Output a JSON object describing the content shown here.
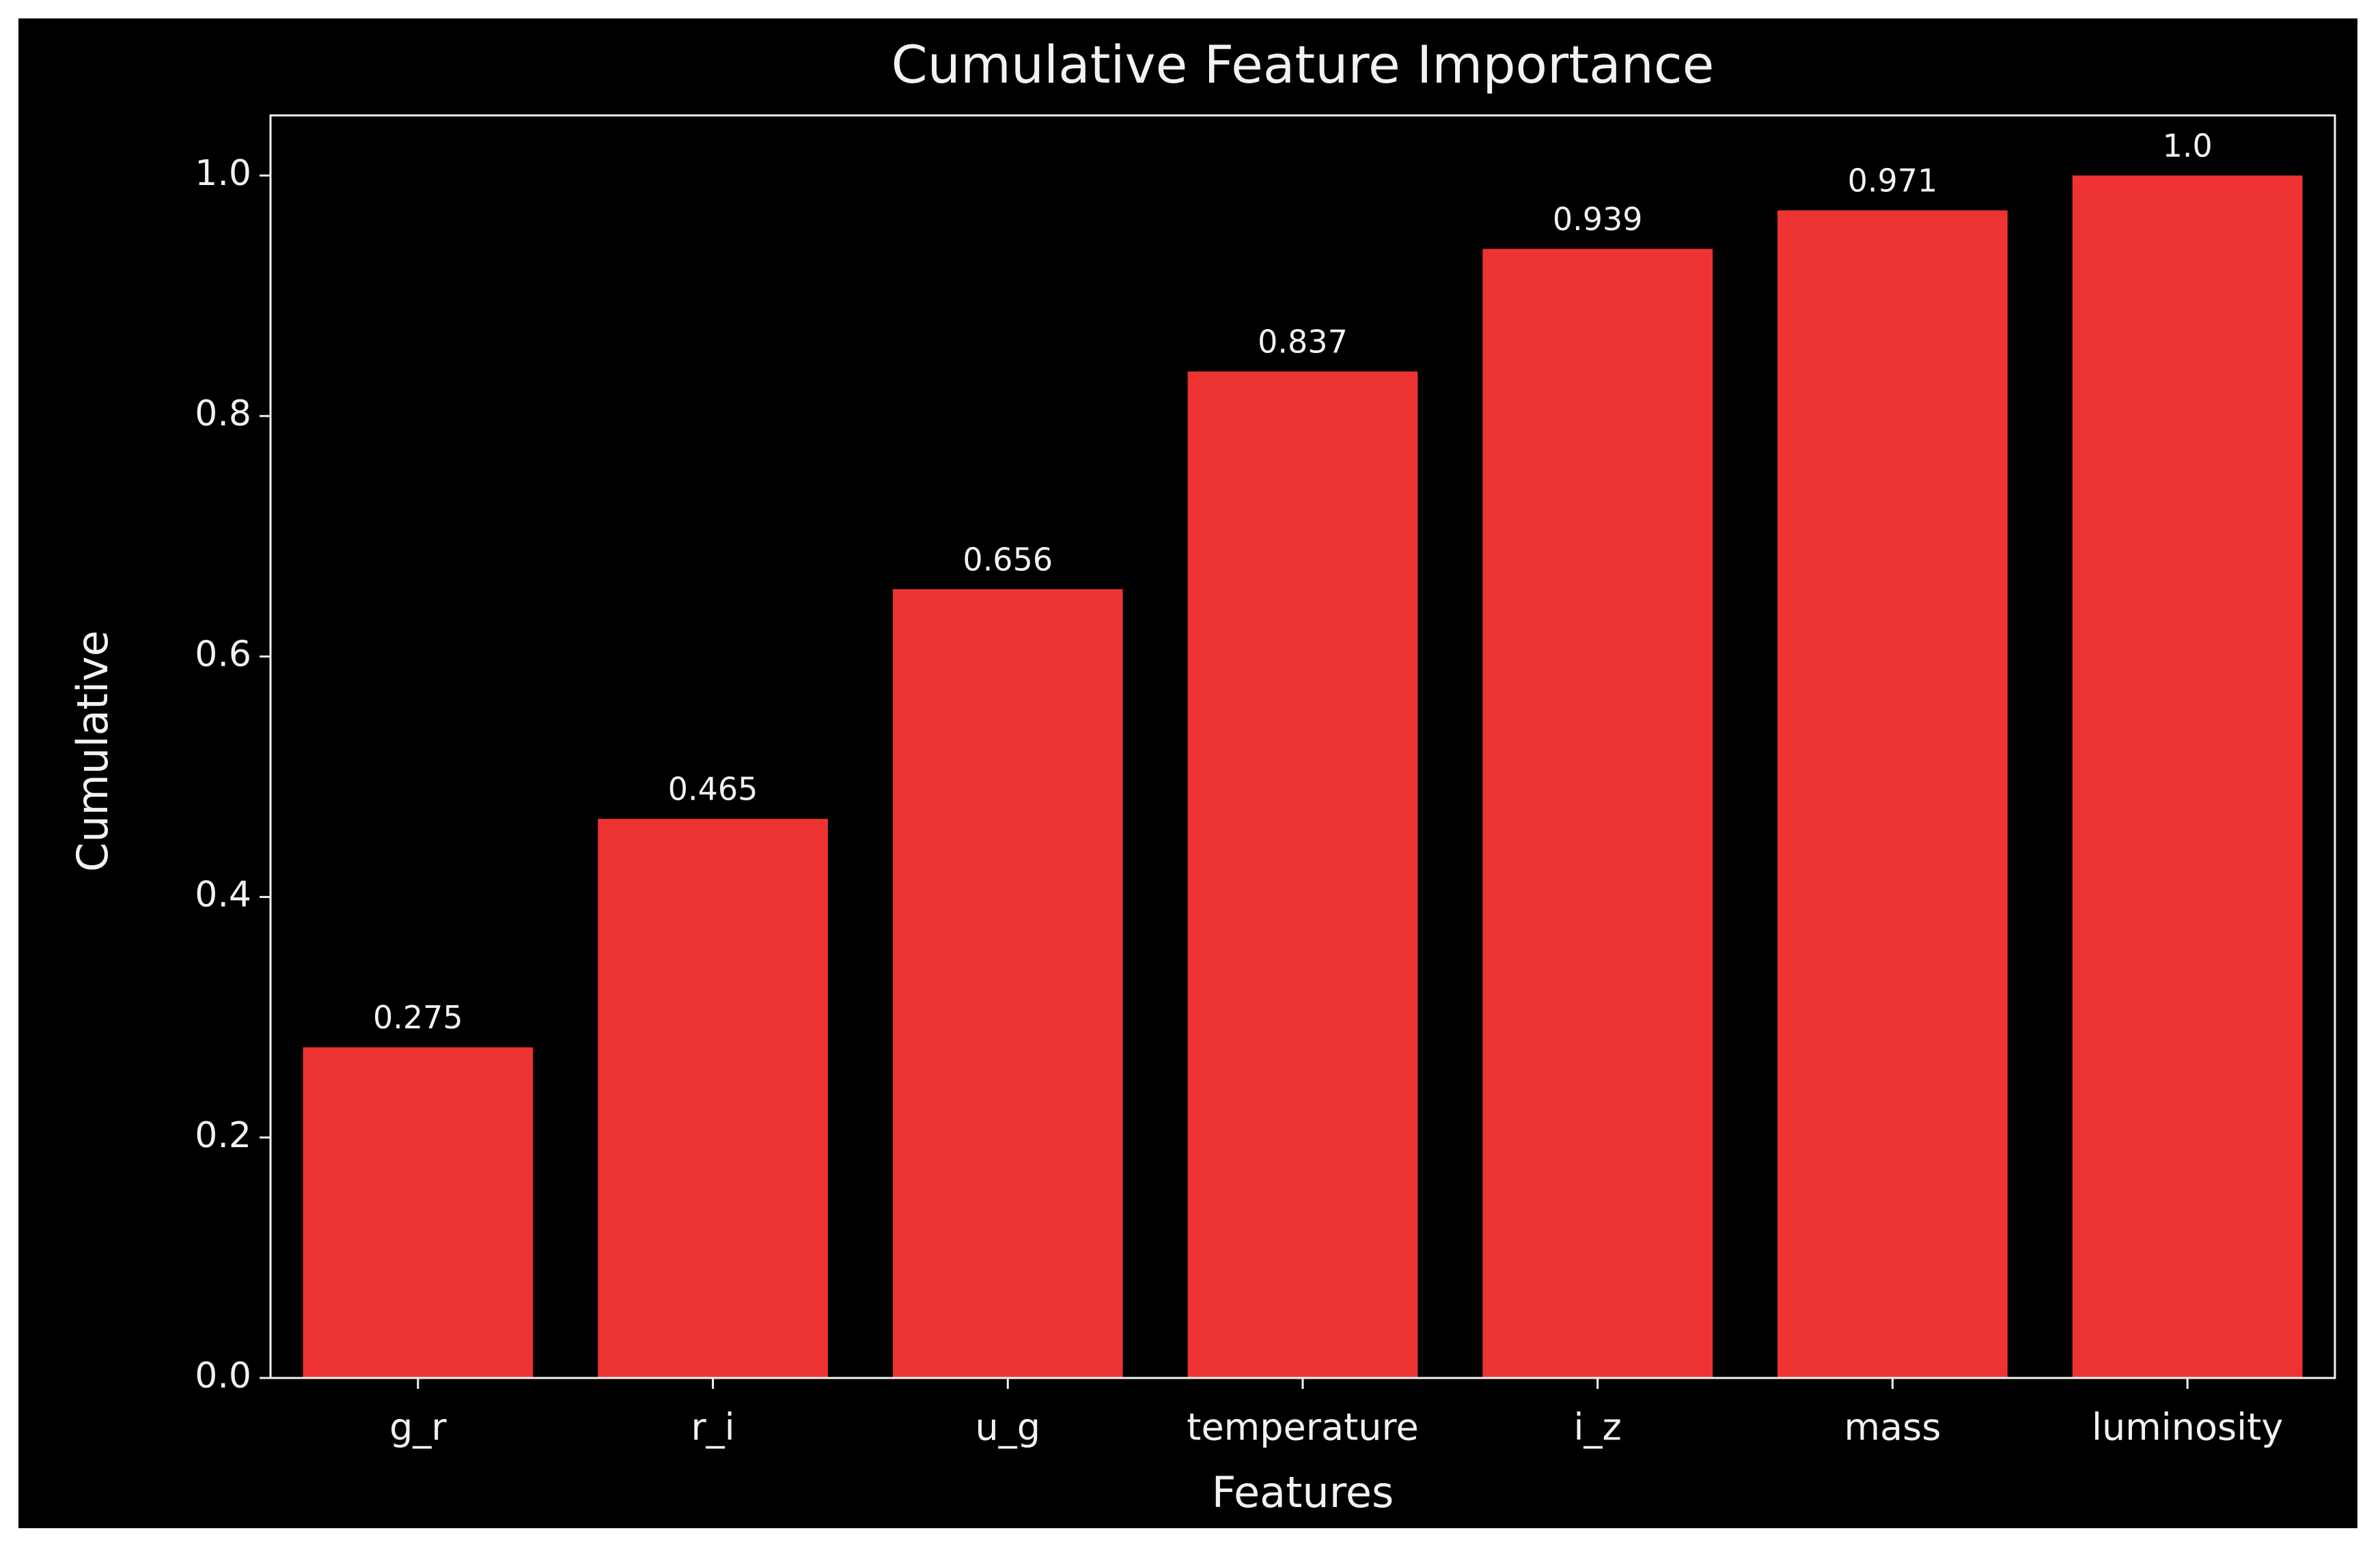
{
  "chart_data": {
    "type": "bar",
    "title": "Cumulative Feature Importance",
    "x_label": "Features",
    "y_label": "Cumulative",
    "categories": [
      "g_r",
      "r_i",
      "u_g",
      "temperature",
      "i_z",
      "mass",
      "luminosity"
    ],
    "values": [
      0.275,
      0.465,
      0.656,
      0.837,
      0.939,
      0.971,
      1.0
    ],
    "value_labels": [
      "0.275",
      "0.465",
      "0.656",
      "0.837",
      "0.939",
      "0.971",
      "1.0"
    ],
    "color": "#ee3333",
    "ylim": [
      0,
      1.05
    ],
    "yticks": [
      {
        "value": 0,
        "label": "0.0"
      },
      0.2,
      0.4,
      0.6,
      0.8,
      {
        "value": 1,
        "label": "1.0"
      }
    ],
    "grid": false
  }
}
